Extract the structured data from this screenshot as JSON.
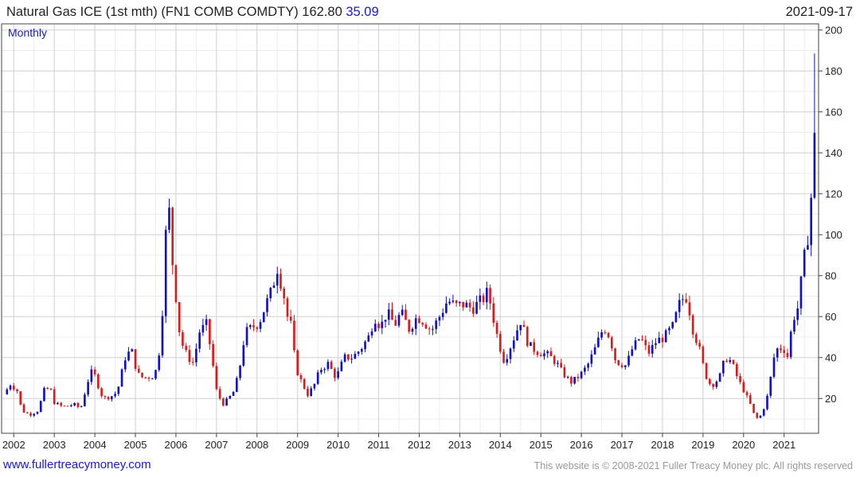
{
  "header": {
    "title_main": "Natural Gas ICE (1st mth) (FN1 COMB COMDTY) 162.80",
    "title_change": "35.09",
    "date": "2021-09-17"
  },
  "footer": {
    "site": "www.fullertreacymoney.com",
    "copyright": "This website is © 2008-2021 Fuller Treacy Money plc. All rights reserved"
  },
  "colors": {
    "up": "#1010c8",
    "down": "#e01818",
    "grid": "#d0d0d0",
    "axis": "#444444",
    "interval_label": "#1a1ad0"
  },
  "chart_data": {
    "type": "candlestick",
    "interval_label": "Monthly",
    "x_tick_labels": [
      "2002",
      "2003",
      "2004",
      "2005",
      "2006",
      "2007",
      "2008",
      "2009",
      "2010",
      "2011",
      "2012",
      "2013",
      "2014",
      "2015",
      "2016",
      "2017",
      "2018",
      "2019",
      "2020",
      "2021"
    ],
    "y_tick_labels": [
      "20",
      "40",
      "60",
      "80",
      "100",
      "120",
      "140",
      "160",
      "180",
      "200"
    ],
    "ylim": [
      3,
      203
    ],
    "xlim": [
      2001.7,
      2021.85
    ],
    "last_value": 162.8,
    "last_change": 35.09,
    "close_anchors": [
      [
        2001.75,
        22
      ],
      [
        2001.92,
        27
      ],
      [
        2002.08,
        24
      ],
      [
        2002.2,
        14
      ],
      [
        2002.4,
        12
      ],
      [
        2002.6,
        14
      ],
      [
        2002.75,
        24
      ],
      [
        2002.9,
        25
      ],
      [
        2003.0,
        18
      ],
      [
        2003.2,
        16
      ],
      [
        2003.5,
        17
      ],
      [
        2003.65,
        15
      ],
      [
        2003.85,
        30
      ],
      [
        2003.95,
        34
      ],
      [
        2004.05,
        28
      ],
      [
        2004.2,
        20
      ],
      [
        2004.4,
        21
      ],
      [
        2004.55,
        23
      ],
      [
        2004.75,
        40
      ],
      [
        2004.9,
        44
      ],
      [
        2005.05,
        32
      ],
      [
        2005.2,
        30
      ],
      [
        2005.45,
        31
      ],
      [
        2005.55,
        36
      ],
      [
        2005.65,
        56
      ],
      [
        2005.75,
        100
      ],
      [
        2005.85,
        113
      ],
      [
        2005.92,
        85
      ],
      [
        2006.0,
        70
      ],
      [
        2006.1,
        50
      ],
      [
        2006.2,
        44
      ],
      [
        2006.3,
        40
      ],
      [
        2006.45,
        37
      ],
      [
        2006.55,
        52
      ],
      [
        2006.75,
        56
      ],
      [
        2006.85,
        45
      ],
      [
        2007.0,
        24
      ],
      [
        2007.15,
        17
      ],
      [
        2007.3,
        20
      ],
      [
        2007.45,
        24
      ],
      [
        2007.6,
        38
      ],
      [
        2007.7,
        52
      ],
      [
        2007.9,
        55
      ],
      [
        2008.05,
        57
      ],
      [
        2008.2,
        65
      ],
      [
        2008.35,
        72
      ],
      [
        2008.5,
        84
      ],
      [
        2008.65,
        72
      ],
      [
        2008.75,
        60
      ],
      [
        2008.85,
        55
      ],
      [
        2008.95,
        35
      ],
      [
        2009.1,
        28
      ],
      [
        2009.25,
        22
      ],
      [
        2009.4,
        26
      ],
      [
        2009.55,
        34
      ],
      [
        2009.75,
        37
      ],
      [
        2009.95,
        30
      ],
      [
        2010.15,
        40
      ],
      [
        2010.35,
        40
      ],
      [
        2010.55,
        44
      ],
      [
        2010.75,
        50
      ],
      [
        2010.9,
        60
      ],
      [
        2011.05,
        55
      ],
      [
        2011.2,
        62
      ],
      [
        2011.4,
        56
      ],
      [
        2011.55,
        62
      ],
      [
        2011.75,
        54
      ],
      [
        2011.95,
        60
      ],
      [
        2012.1,
        58
      ],
      [
        2012.3,
        53
      ],
      [
        2012.5,
        60
      ],
      [
        2012.7,
        68
      ],
      [
        2012.9,
        65
      ],
      [
        2013.1,
        66
      ],
      [
        2013.3,
        64
      ],
      [
        2013.55,
        68
      ],
      [
        2013.7,
        72
      ],
      [
        2013.8,
        62
      ],
      [
        2013.95,
        48
      ],
      [
        2014.1,
        38
      ],
      [
        2014.3,
        48
      ],
      [
        2014.5,
        58
      ],
      [
        2014.7,
        46
      ],
      [
        2014.9,
        43
      ],
      [
        2015.2,
        41
      ],
      [
        2015.4,
        37
      ],
      [
        2015.55,
        32
      ],
      [
        2015.75,
        28
      ],
      [
        2015.95,
        31
      ],
      [
        2016.15,
        36
      ],
      [
        2016.35,
        45
      ],
      [
        2016.55,
        55
      ],
      [
        2016.7,
        50
      ],
      [
        2016.85,
        38
      ],
      [
        2017.1,
        36
      ],
      [
        2017.25,
        44
      ],
      [
        2017.45,
        50
      ],
      [
        2017.65,
        42
      ],
      [
        2017.85,
        48
      ],
      [
        2018.05,
        50
      ],
      [
        2018.25,
        55
      ],
      [
        2018.45,
        68
      ],
      [
        2018.6,
        70
      ],
      [
        2018.75,
        54
      ],
      [
        2018.9,
        45
      ],
      [
        2019.05,
        32
      ],
      [
        2019.2,
        26
      ],
      [
        2019.4,
        30
      ],
      [
        2019.55,
        40
      ],
      [
        2019.7,
        38
      ],
      [
        2019.85,
        30
      ],
      [
        2020.0,
        24
      ],
      [
        2020.15,
        18
      ],
      [
        2020.3,
        10
      ],
      [
        2020.45,
        12
      ],
      [
        2020.6,
        22
      ],
      [
        2020.75,
        40
      ],
      [
        2020.85,
        45
      ],
      [
        2021.0,
        44
      ],
      [
        2021.1,
        40
      ],
      [
        2021.2,
        58
      ],
      [
        2021.35,
        65
      ],
      [
        2021.45,
        82
      ],
      [
        2021.55,
        95
      ],
      [
        2021.62,
        105
      ],
      [
        2021.7,
        128
      ],
      [
        2021.78,
        162.8
      ]
    ]
  }
}
